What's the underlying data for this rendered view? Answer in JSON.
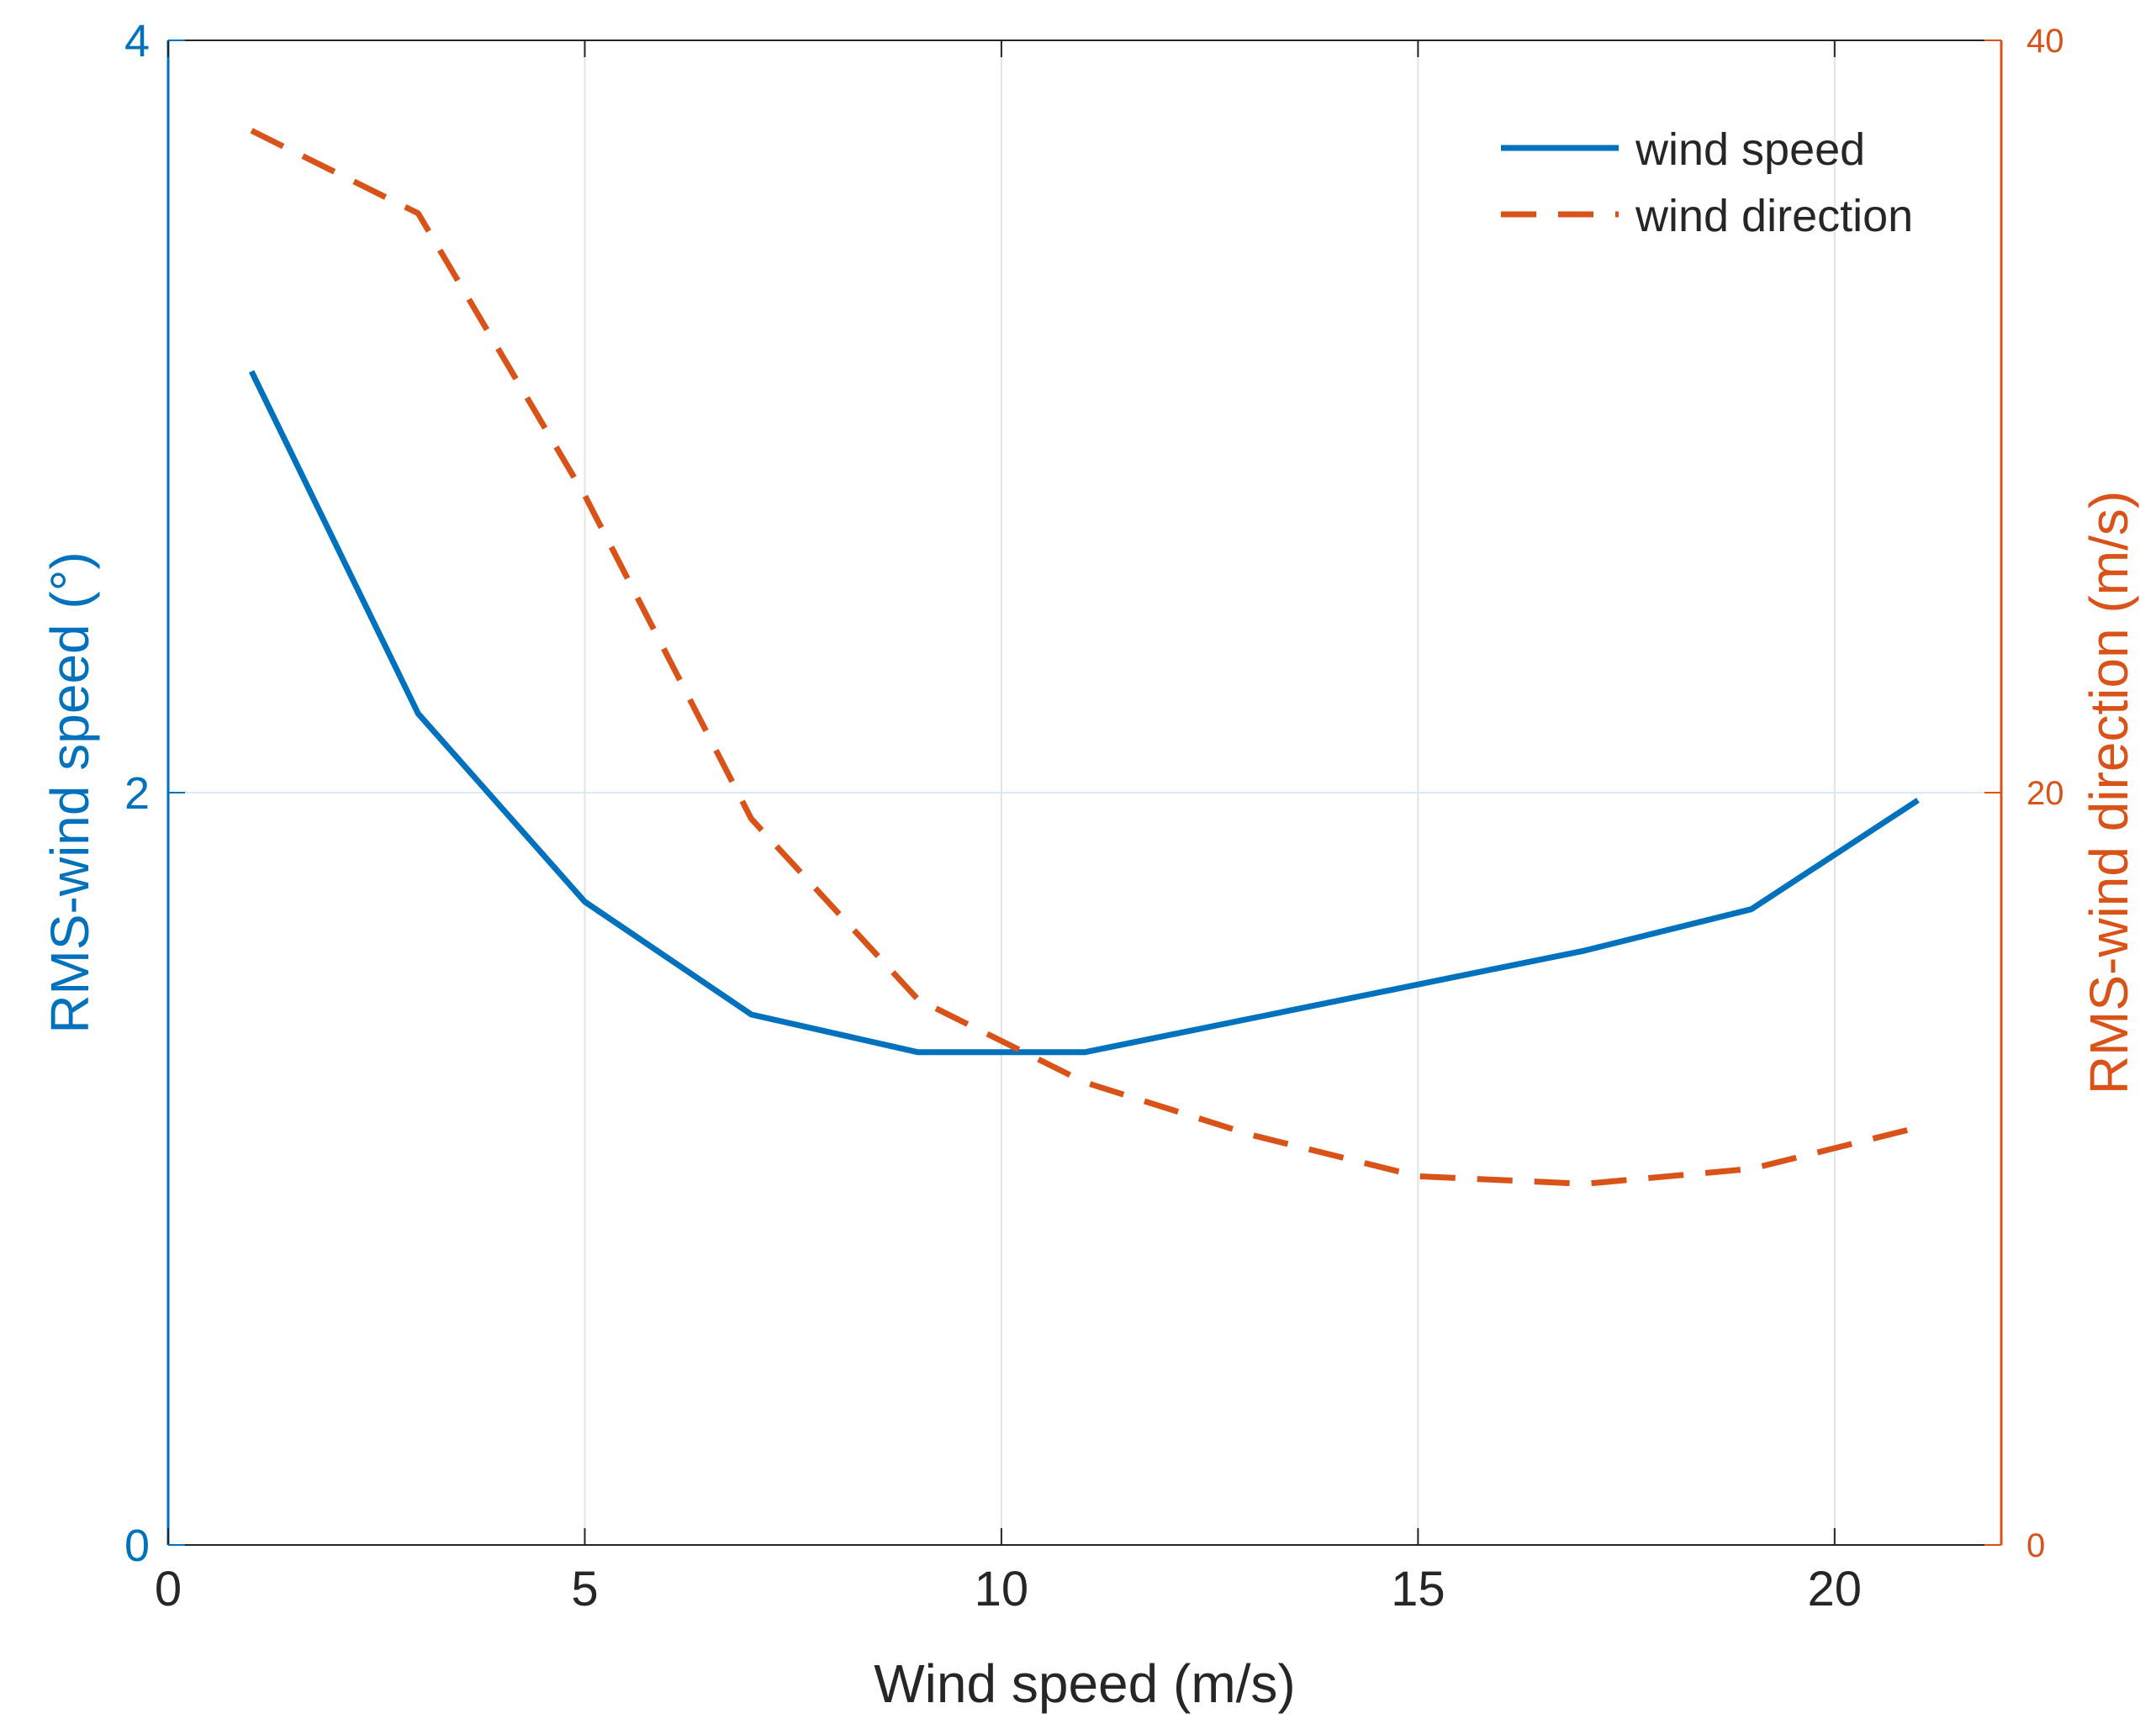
{
  "chart_data": {
    "type": "line",
    "xlabel": "Wind speed (m/s)",
    "ylabel_left": "RMS-wind speed (°)",
    "ylabel_right": "RMS-wind direction (m/s)",
    "xlim": [
      0,
      22
    ],
    "ylim_left": [
      0,
      4
    ],
    "ylim_right": [
      0,
      40
    ],
    "x_ticks": [
      0,
      5,
      10,
      15,
      20
    ],
    "x_tick_labels": [
      "0",
      "5",
      "10",
      "15",
      "20"
    ],
    "y_left_ticks": [
      0,
      2,
      4
    ],
    "y_left_tick_labels": [
      "0",
      "2",
      "4"
    ],
    "y_right_ticks": [
      0,
      20,
      40
    ],
    "y_right_tick_labels": [
      "0",
      "20",
      "40"
    ],
    "grid": true,
    "legend_position": "top-right",
    "series": [
      {
        "name": "wind speed",
        "axis": "left",
        "style": "solid",
        "color": "#0072BD",
        "x": [
          1,
          3,
          5,
          7,
          9,
          11,
          13,
          15,
          17,
          19,
          21
        ],
        "values": [
          3.12,
          2.21,
          1.71,
          1.41,
          1.31,
          1.31,
          1.4,
          1.49,
          1.58,
          1.69,
          1.98
        ]
      },
      {
        "name": "wind direction",
        "axis": "right",
        "style": "dashed",
        "color": "#D95319",
        "x": [
          1,
          3,
          5,
          7,
          9,
          11,
          13,
          15,
          17,
          19,
          21
        ],
        "values": [
          37.6,
          35.4,
          27.9,
          19.3,
          14.5,
          12.3,
          10.9,
          9.8,
          9.6,
          10.0,
          11.1
        ]
      }
    ]
  }
}
